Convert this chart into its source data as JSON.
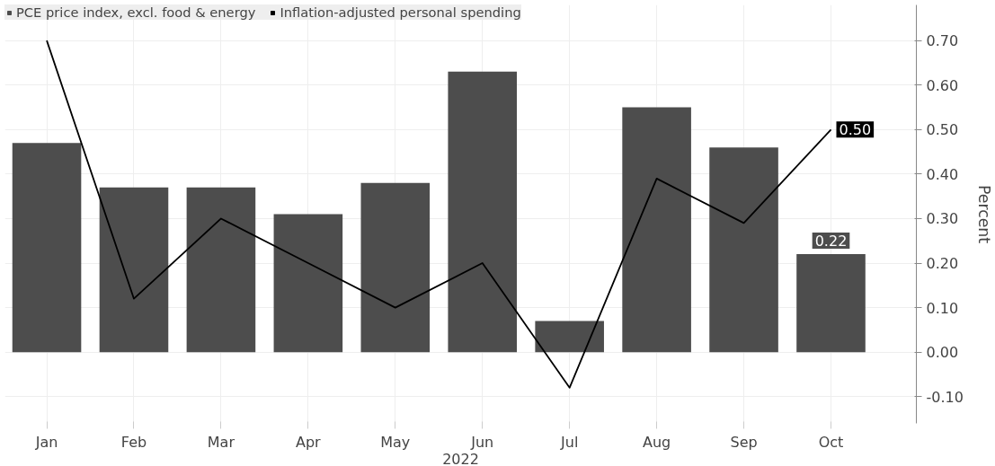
{
  "chart_data": {
    "type": "bar",
    "categories": [
      "Jan",
      "Feb",
      "Mar",
      "Apr",
      "May",
      "Jun",
      "Jul",
      "Aug",
      "Sep",
      "Oct"
    ],
    "xlabel": "2022",
    "ylabel": "Percent",
    "series": [
      {
        "name": "PCE price index, excl. food & energy",
        "color": "#4d4d4d",
        "values": [
          0.47,
          0.37,
          0.37,
          0.31,
          0.38,
          0.63,
          0.07,
          0.55,
          0.46,
          0.22
        ],
        "value_labels": [
          null,
          null,
          null,
          null,
          null,
          null,
          null,
          null,
          null,
          "0.22"
        ]
      },
      {
        "name": "Inflation-adjusted personal spending",
        "type": "line",
        "color": "#000000",
        "values": [
          0.7,
          0.12,
          0.3,
          0.2,
          0.1,
          0.2,
          -0.08,
          0.39,
          0.29,
          0.5
        ],
        "value_labels": [
          null,
          null,
          null,
          null,
          null,
          null,
          null,
          null,
          null,
          "0.50"
        ]
      }
    ],
    "ylim": [
      -0.16,
      0.78
    ],
    "yticks": [
      {
        "value": -0.1,
        "label": "-0.10"
      },
      {
        "value": 0,
        "label": "0.00"
      },
      {
        "value": 0.1,
        "label": "0.10"
      },
      {
        "value": 0.2,
        "label": "0.20"
      },
      {
        "value": 0.3,
        "label": "0.30"
      },
      {
        "value": 0.4,
        "label": "0.40"
      },
      {
        "value": 0.5,
        "label": "0.50"
      },
      {
        "value": 0.6,
        "label": "0.60"
      },
      {
        "value": 0.7,
        "label": "0.70"
      }
    ],
    "grid": true,
    "legend": "top left"
  }
}
